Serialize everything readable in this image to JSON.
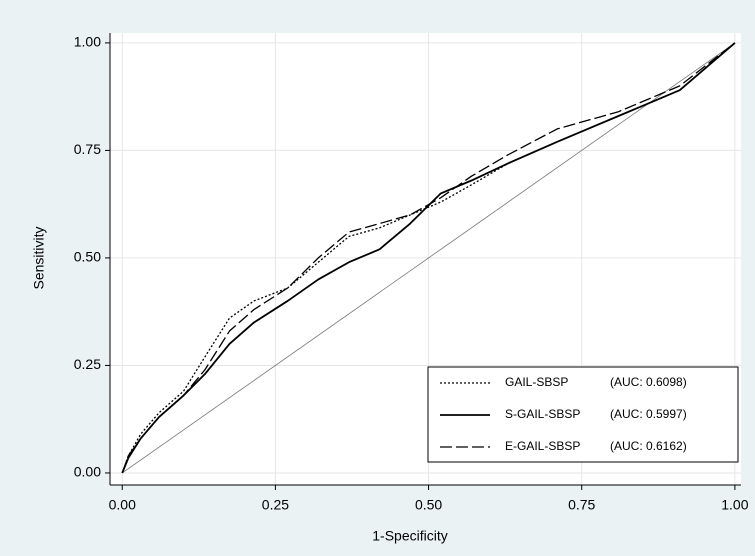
{
  "chart_data": {
    "type": "line",
    "x_label": "1-Specificity",
    "y_label": "Sensitivity",
    "xlim": [
      -0.02,
      1.01
    ],
    "ylim": [
      -0.028,
      1.023
    ],
    "xticks": [
      {
        "value": 0,
        "label": "0.00"
      },
      {
        "value": 0.25,
        "label": "0.25"
      },
      {
        "value": 0.5,
        "label": "0.50"
      },
      {
        "value": 0.75,
        "label": "0.75"
      },
      {
        "value": 1,
        "label": "1.00"
      }
    ],
    "yticks": [
      {
        "value": 0,
        "label": "0.00"
      },
      {
        "value": 0.25,
        "label": "0.25"
      },
      {
        "value": 0.5,
        "label": "0.50"
      },
      {
        "value": 0.75,
        "label": "0.75"
      },
      {
        "value": 1,
        "label": "1.00"
      }
    ],
    "grid": true,
    "legend": "bottom-right",
    "x": [
      0,
      0.01,
      0.03,
      0.06,
      0.1,
      0.135,
      0.175,
      0.215,
      0.27,
      0.32,
      0.37,
      0.42,
      0.47,
      0.52,
      0.57,
      0.63,
      0.71,
      0.81,
      0.91,
      1.0
    ],
    "series": [
      {
        "name": "GAIL-SBSP",
        "auc": "(AUC: 0.6098)",
        "color": "#000000",
        "dash": "2,2",
        "width": 1.3,
        "values": [
          0,
          0.04,
          0.09,
          0.14,
          0.19,
          0.27,
          0.36,
          0.4,
          0.43,
          0.49,
          0.55,
          0.57,
          0.6,
          0.63,
          0.67,
          0.72,
          0.77,
          0.83,
          0.89,
          1.0
        ]
      },
      {
        "name": "S-GAIL-SBSP",
        "auc": "(AUC: 0.5997)",
        "color": "#000000",
        "dash": "none",
        "width": 1.8,
        "values": [
          0,
          0.035,
          0.08,
          0.13,
          0.18,
          0.23,
          0.3,
          0.35,
          0.4,
          0.45,
          0.49,
          0.52,
          0.58,
          0.65,
          0.68,
          0.72,
          0.77,
          0.83,
          0.89,
          1.0
        ]
      },
      {
        "name": "E-GAIL-SBSP",
        "auc": "(AUC: 0.6162)",
        "color": "#000000",
        "dash": "12,4",
        "width": 1.3,
        "values": [
          0,
          0.04,
          0.08,
          0.13,
          0.18,
          0.24,
          0.33,
          0.38,
          0.43,
          0.5,
          0.56,
          0.58,
          0.6,
          0.64,
          0.69,
          0.74,
          0.8,
          0.84,
          0.9,
          1.0
        ]
      }
    ],
    "reference": {
      "x": [
        0,
        1
      ],
      "values": [
        0,
        1
      ],
      "color": "#777777"
    }
  }
}
